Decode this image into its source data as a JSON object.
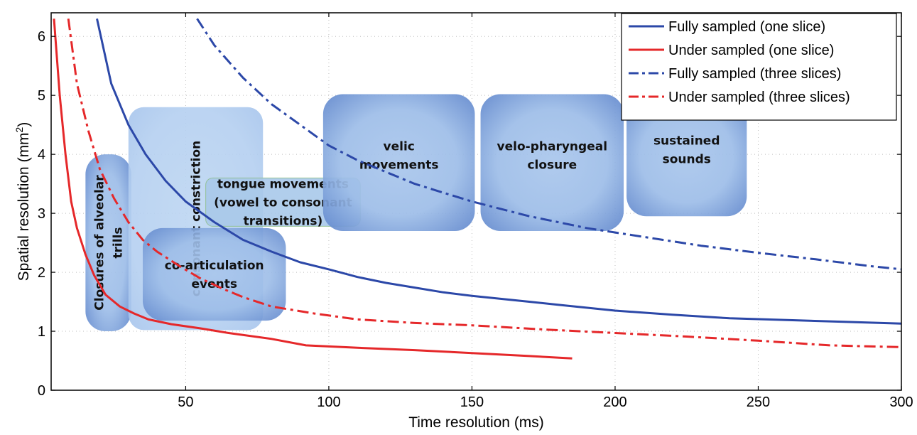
{
  "chart_data": {
    "type": "line",
    "xlabel": "Time resolution (ms)",
    "ylabel": "Spatial resolution (mm",
    "ylabel_superscript": "2",
    "ylabel_close": ")",
    "xlim": [
      3,
      300
    ],
    "ylim": [
      0,
      6.4
    ],
    "x_ticks": [
      50,
      100,
      150,
      200,
      250,
      300
    ],
    "y_ticks": [
      0,
      1,
      2,
      3,
      4,
      5,
      6
    ],
    "grid": true,
    "legend_position": "top-right",
    "series": [
      {
        "name": "Fully sampled (one slice)",
        "color": "#2c48a8",
        "style": "solid",
        "points": [
          [
            19,
            6.3
          ],
          [
            24,
            5.2
          ],
          [
            30,
            4.5
          ],
          [
            36,
            4.0
          ],
          [
            43,
            3.55
          ],
          [
            50,
            3.2
          ],
          [
            60,
            2.85
          ],
          [
            70,
            2.55
          ],
          [
            80,
            2.35
          ],
          [
            90,
            2.17
          ],
          [
            100,
            2.05
          ],
          [
            110,
            1.92
          ],
          [
            120,
            1.82
          ],
          [
            130,
            1.74
          ],
          [
            140,
            1.66
          ],
          [
            150,
            1.6
          ],
          [
            170,
            1.5
          ],
          [
            180,
            1.45
          ],
          [
            200,
            1.35
          ],
          [
            220,
            1.28
          ],
          [
            240,
            1.22
          ],
          [
            260,
            1.19
          ],
          [
            280,
            1.16
          ],
          [
            300,
            1.13
          ]
        ]
      },
      {
        "name": "Under sampled (one slice)",
        "color": "#e5282a",
        "style": "solid",
        "points": [
          [
            4,
            6.3
          ],
          [
            6,
            5.0
          ],
          [
            8,
            4.0
          ],
          [
            10,
            3.2
          ],
          [
            12,
            2.75
          ],
          [
            15,
            2.3
          ],
          [
            18,
            1.95
          ],
          [
            22,
            1.62
          ],
          [
            27,
            1.42
          ],
          [
            32,
            1.3
          ],
          [
            37,
            1.2
          ],
          [
            45,
            1.12
          ],
          [
            55,
            1.05
          ],
          [
            65,
            0.97
          ],
          [
            80,
            0.87
          ],
          [
            92,
            0.76
          ],
          [
            110,
            0.72
          ],
          [
            130,
            0.68
          ],
          [
            150,
            0.63
          ],
          [
            170,
            0.58
          ],
          [
            185,
            0.54
          ]
        ]
      },
      {
        "name": "Fully sampled (three slices)",
        "color": "#2c48a8",
        "style": "dashdot",
        "points": [
          [
            54,
            6.3
          ],
          [
            60,
            5.85
          ],
          [
            70,
            5.3
          ],
          [
            80,
            4.85
          ],
          [
            90,
            4.5
          ],
          [
            100,
            4.15
          ],
          [
            110,
            3.9
          ],
          [
            120,
            3.7
          ],
          [
            130,
            3.5
          ],
          [
            140,
            3.35
          ],
          [
            150,
            3.2
          ],
          [
            170,
            2.95
          ],
          [
            190,
            2.75
          ],
          [
            210,
            2.6
          ],
          [
            230,
            2.45
          ],
          [
            250,
            2.33
          ],
          [
            270,
            2.22
          ],
          [
            290,
            2.1
          ],
          [
            300,
            2.05
          ]
        ]
      },
      {
        "name": "Under sampled (three slices)",
        "color": "#e5282a",
        "style": "dashdot",
        "points": [
          [
            9,
            6.3
          ],
          [
            12,
            5.2
          ],
          [
            16,
            4.4
          ],
          [
            20,
            3.75
          ],
          [
            25,
            3.25
          ],
          [
            30,
            2.85
          ],
          [
            35,
            2.55
          ],
          [
            40,
            2.35
          ],
          [
            48,
            2.1
          ],
          [
            55,
            1.9
          ],
          [
            63,
            1.72
          ],
          [
            70,
            1.58
          ],
          [
            80,
            1.42
          ],
          [
            95,
            1.3
          ],
          [
            110,
            1.2
          ],
          [
            130,
            1.14
          ],
          [
            150,
            1.1
          ],
          [
            175,
            1.03
          ],
          [
            200,
            0.97
          ],
          [
            225,
            0.91
          ],
          [
            250,
            0.84
          ],
          [
            275,
            0.76
          ],
          [
            300,
            0.73
          ]
        ]
      }
    ],
    "regions": [
      {
        "key": "trills",
        "lines": [
          "Closures of alveolar",
          "trills"
        ],
        "rotated": true,
        "x0": 15,
        "x1": 31,
        "y0": 1.0,
        "y1": 4.0
      },
      {
        "key": "constriction",
        "lines": [
          "consonant constriction"
        ],
        "rotated": true,
        "x0": 30,
        "x1": 77,
        "y0": 1.02,
        "y1": 4.8
      },
      {
        "key": "tongue",
        "lines": [
          "tongue movements",
          "(vowel to consonant",
          "transitions)"
        ],
        "rotated": false,
        "x0": 57,
        "x1": 111,
        "y0": 2.78,
        "y1": 3.6
      },
      {
        "key": "coarticulation",
        "lines": [
          "co-articulation",
          "events"
        ],
        "rotated": false,
        "x0": 35,
        "x1": 85,
        "y0": 1.18,
        "y1": 2.75
      },
      {
        "key": "velic",
        "lines": [
          "velic",
          "movements"
        ],
        "rotated": false,
        "x0": 98,
        "x1": 151,
        "y0": 2.7,
        "y1": 5.02
      },
      {
        "key": "velopharyngeal",
        "lines": [
          "velo-pharyngeal",
          "closure"
        ],
        "rotated": false,
        "x0": 153,
        "x1": 203,
        "y0": 2.7,
        "y1": 5.02
      },
      {
        "key": "sustained",
        "lines": [
          "sustained",
          "sounds"
        ],
        "rotated": false,
        "x0": 204,
        "x1": 246,
        "y0": 2.95,
        "y1": 4.97
      }
    ]
  }
}
